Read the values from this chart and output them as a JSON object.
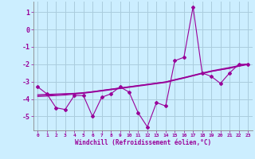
{
  "title": "",
  "xlabel": "Windchill (Refroidissement éolien,°C)",
  "background_color": "#cceeff",
  "grid_color": "#aaccdd",
  "line_color": "#990099",
  "tick_color": "#990099",
  "x_data": [
    0,
    1,
    2,
    3,
    4,
    5,
    6,
    7,
    8,
    9,
    10,
    11,
    12,
    13,
    14,
    15,
    16,
    17,
    18,
    19,
    20,
    21,
    22,
    23
  ],
  "y_scatter": [
    -3.3,
    -3.7,
    -4.5,
    -4.6,
    -3.8,
    -3.8,
    -5.0,
    -3.9,
    -3.7,
    -3.3,
    -3.6,
    -4.8,
    -5.6,
    -4.2,
    -4.4,
    -1.8,
    -1.6,
    1.3,
    -2.5,
    -2.7,
    -3.1,
    -2.5,
    -2.0,
    -2.0
  ],
  "y_line1": [
    -3.75,
    -3.73,
    -3.71,
    -3.69,
    -3.67,
    -3.65,
    -3.58,
    -3.51,
    -3.44,
    -3.37,
    -3.3,
    -3.23,
    -3.16,
    -3.09,
    -3.02,
    -2.9,
    -2.78,
    -2.65,
    -2.52,
    -2.4,
    -2.32,
    -2.24,
    -2.1,
    -1.98
  ],
  "y_line2": [
    -3.8,
    -3.78,
    -3.75,
    -3.72,
    -3.68,
    -3.63,
    -3.57,
    -3.5,
    -3.43,
    -3.36,
    -3.29,
    -3.22,
    -3.15,
    -3.08,
    -3.01,
    -2.88,
    -2.76,
    -2.63,
    -2.5,
    -2.38,
    -2.28,
    -2.18,
    -2.08,
    -1.98
  ],
  "y_line3": [
    -3.85,
    -3.83,
    -3.8,
    -3.77,
    -3.72,
    -3.67,
    -3.61,
    -3.54,
    -3.47,
    -3.4,
    -3.33,
    -3.26,
    -3.19,
    -3.12,
    -3.05,
    -2.92,
    -2.8,
    -2.67,
    -2.54,
    -2.42,
    -2.32,
    -2.22,
    -2.12,
    -2.02
  ],
  "ylim": [
    -5.8,
    1.6
  ],
  "xlim": [
    -0.5,
    23.5
  ],
  "yticks": [
    1,
    0,
    -1,
    -2,
    -3,
    -4,
    -5
  ],
  "xticks": [
    0,
    1,
    2,
    3,
    4,
    5,
    6,
    7,
    8,
    9,
    10,
    11,
    12,
    13,
    14,
    15,
    16,
    17,
    18,
    19,
    20,
    21,
    22,
    23
  ]
}
